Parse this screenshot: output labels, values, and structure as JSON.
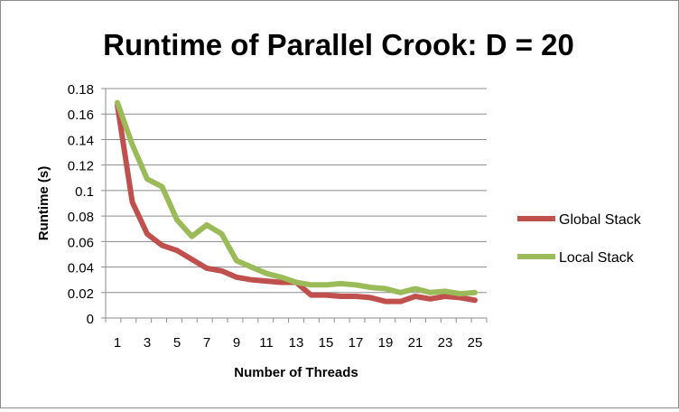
{
  "chart_data": {
    "type": "line",
    "title": "Runtime of Parallel Crook: D = 20",
    "xlabel": "Number of Threads",
    "ylabel": "Runtime (s)",
    "ylim": [
      0,
      0.18
    ],
    "yticks": [
      0,
      0.02,
      0.04,
      0.06,
      0.08,
      0.1,
      0.12,
      0.14,
      0.16,
      0.18
    ],
    "ytick_labels": [
      "0",
      "0.02",
      "0.04",
      "0.06",
      "0.08",
      "0.1",
      "0.12",
      "0.14",
      "0.16",
      "0.18"
    ],
    "xticks": [
      1,
      3,
      5,
      7,
      9,
      11,
      13,
      15,
      17,
      19,
      21,
      23,
      25
    ],
    "xtick_labels": [
      "1",
      "3",
      "5",
      "7",
      "9",
      "11",
      "13",
      "15",
      "17",
      "19",
      "21",
      "23",
      "25"
    ],
    "grid": "horizontal",
    "legend_position": "right",
    "x": [
      1,
      2,
      3,
      4,
      5,
      6,
      7,
      8,
      9,
      10,
      11,
      12,
      13,
      14,
      15,
      16,
      17,
      18,
      19,
      20,
      21,
      22,
      23,
      24,
      25
    ],
    "series": [
      {
        "name": "Global Stack",
        "color": "#c0504d",
        "values": [
          0.167,
          0.091,
          0.066,
          0.057,
          0.053,
          0.046,
          0.039,
          0.037,
          0.032,
          0.03,
          0.029,
          0.028,
          0.028,
          0.018,
          0.018,
          0.017,
          0.017,
          0.016,
          0.013,
          0.013,
          0.017,
          0.015,
          0.017,
          0.016,
          0.014
        ]
      },
      {
        "name": "Local Stack",
        "color": "#9bbb59",
        "values": [
          0.169,
          0.136,
          0.109,
          0.103,
          0.077,
          0.064,
          0.073,
          0.066,
          0.045,
          0.04,
          0.035,
          0.032,
          0.028,
          0.026,
          0.026,
          0.027,
          0.026,
          0.024,
          0.023,
          0.02,
          0.023,
          0.02,
          0.021,
          0.019,
          0.02
        ]
      }
    ]
  }
}
